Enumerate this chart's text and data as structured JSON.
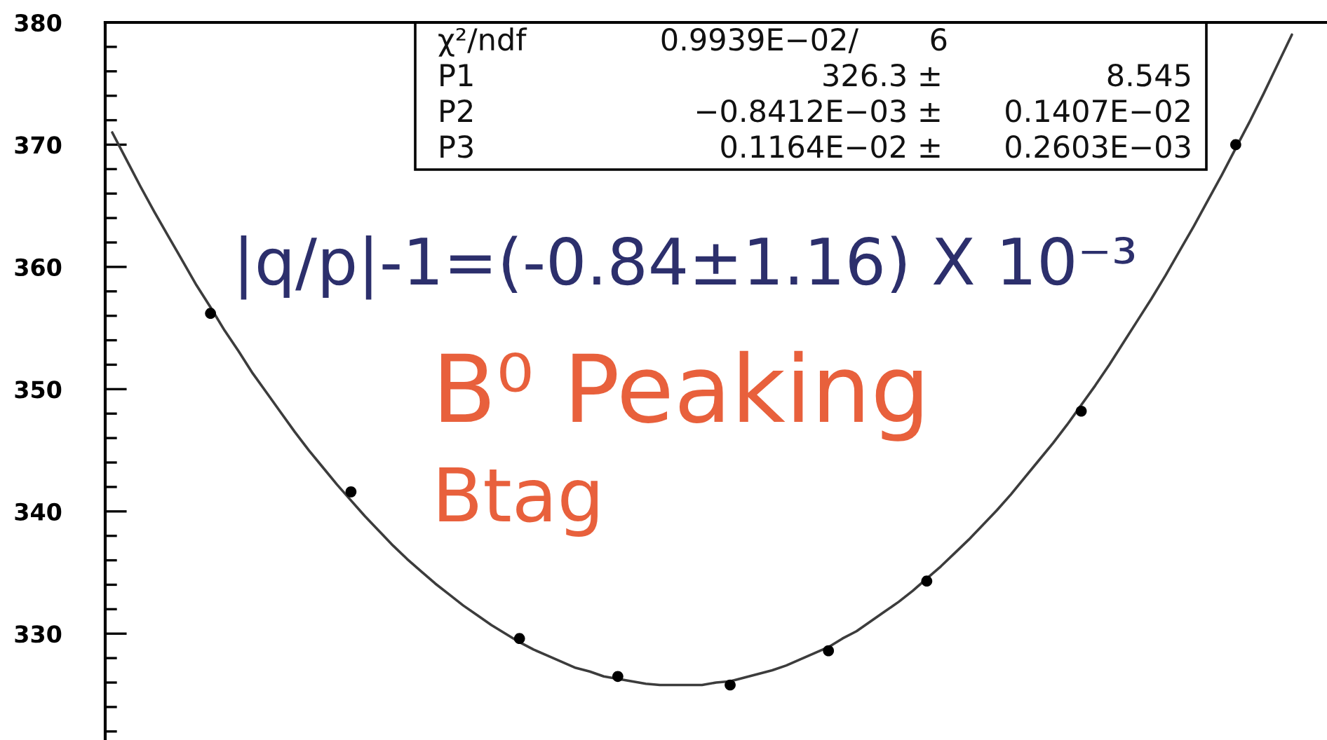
{
  "chart_data": {
    "type": "scatter",
    "categories": [
      null,
      null,
      null,
      null,
      null,
      null,
      null,
      null,
      null,
      null,
      null,
      null,
      null,
      null,
      null,
      null,
      null,
      null,
      null,
      null,
      null,
      null,
      null,
      null,
      null,
      null,
      null,
      null,
      null,
      null,
      null,
      null,
      null,
      null,
      null,
      null,
      null,
      null,
      null,
      null,
      null,
      null,
      null,
      null,
      null,
      null,
      null,
      null,
      null,
      null,
      null,
      null,
      null,
      null,
      null,
      null,
      null,
      null,
      null,
      null,
      null,
      null,
      null,
      null,
      null,
      null,
      null,
      null,
      null,
      null,
      null,
      null,
      null,
      null,
      null,
      null,
      null,
      null,
      null,
      null,
      null,
      null,
      null,
      null,
      null,
      null,
      null
    ],
    "series": [
      {
        "type": "line",
        "color": "#3c3c3c",
        "values": [
          371.0,
          368.8,
          366.6,
          364.5,
          362.5,
          360.5,
          358.5,
          356.7,
          354.8,
          353.1,
          351.3,
          349.7,
          348.1,
          346.5,
          345.0,
          343.6,
          342.2,
          340.9,
          339.6,
          338.4,
          337.2,
          336.1,
          335.1,
          334.1,
          333.2,
          332.3,
          331.5,
          330.7,
          330.0,
          329.3,
          328.7,
          328.2,
          327.7,
          327.2,
          326.9,
          326.5,
          326.3,
          326.1,
          325.9,
          325.8,
          325.8,
          325.8,
          325.8,
          326.0,
          326.1,
          326.4,
          326.7,
          327.0,
          327.4,
          327.9,
          328.4,
          328.9,
          329.6,
          330.2,
          331.0,
          331.8,
          332.6,
          333.5,
          334.5,
          335.5,
          336.6,
          337.7,
          338.9,
          340.1,
          341.4,
          342.8,
          344.2,
          345.6,
          347.1,
          348.7,
          350.3,
          352.0,
          353.8,
          355.6,
          357.4,
          359.3,
          361.3,
          363.3,
          365.4,
          367.5,
          369.7,
          371.9,
          374.2,
          376.6,
          379.0,
          null,
          null
        ]
      },
      {
        "color": "#000000",
        "marker": "circle",
        "values": [
          null,
          null,
          null,
          null,
          null,
          null,
          null,
          356.2,
          null,
          null,
          null,
          null,
          null,
          null,
          null,
          null,
          null,
          341.6,
          null,
          null,
          null,
          null,
          null,
          null,
          null,
          null,
          null,
          null,
          null,
          329.6,
          null,
          null,
          null,
          null,
          null,
          null,
          326.5,
          null,
          null,
          null,
          null,
          null,
          null,
          null,
          325.8,
          null,
          null,
          null,
          null,
          null,
          null,
          328.6,
          null,
          null,
          null,
          null,
          null,
          null,
          334.3,
          null,
          null,
          null,
          null,
          null,
          null,
          null,
          null,
          null,
          null,
          348.2,
          null,
          null,
          null,
          null,
          null,
          null,
          null,
          null,
          null,
          null,
          370.0,
          null,
          null,
          null,
          null,
          null,
          null
        ]
      }
    ],
    "ylim": [
      321.3,
      380
    ],
    "yticks": [
      330,
      340,
      350,
      360,
      370,
      380
    ],
    "tick_labels": "y",
    "annotations": [
      "χ²/ndf",
      "0.9939E−02/",
      "6",
      "P1",
      "326.3 ±",
      "8.545",
      "P2",
      "−0.8412E−03 ±",
      "0.1407E−02",
      "P3",
      "0.1164E−02 ±",
      "0.2603E−03",
      "|q/p|-1=(-0.84±1.16) X 10⁻³",
      "B⁰ Peaking",
      "Btag"
    ]
  }
}
